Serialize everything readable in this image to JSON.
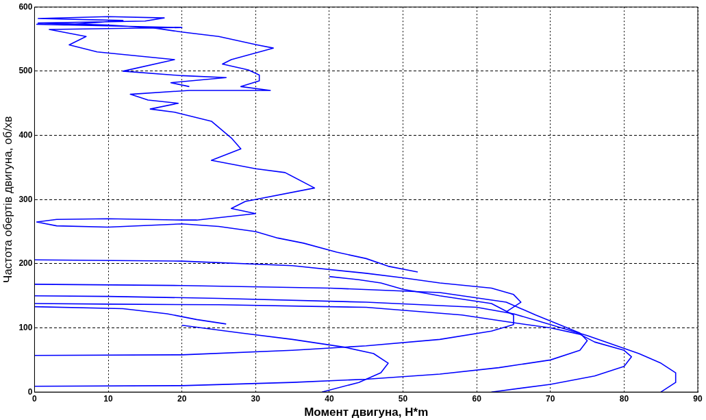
{
  "chart_data": {
    "type": "line",
    "xlabel": "Момент двигуна, Н*m",
    "ylabel": "Частота обертів двигуна, об/хв",
    "xlim": [
      0,
      90
    ],
    "ylim": [
      0,
      600
    ],
    "xticks": [
      0,
      10,
      20,
      30,
      40,
      50,
      60,
      70,
      80,
      90
    ],
    "yticks": [
      0,
      100,
      200,
      300,
      400,
      500,
      600
    ],
    "grid": true,
    "legend": false,
    "marker": "none",
    "line_style": "solid",
    "series": [
      {
        "color": "#0000ff",
        "x": [
          85,
          87,
          87,
          85,
          82,
          79,
          75,
          70,
          65,
          60,
          45,
          25,
          10,
          0
        ],
        "values": [
          0,
          15,
          30,
          45,
          60,
          72,
          88,
          105,
          122,
          132,
          140,
          146,
          149,
          150
        ]
      },
      {
        "color": "#0000ff",
        "x": [
          62,
          70,
          76,
          80,
          81,
          80,
          76,
          74,
          70,
          65,
          58,
          45,
          25,
          10,
          0
        ],
        "values": [
          0,
          12,
          25,
          40,
          55,
          65,
          78,
          90,
          100,
          108,
          120,
          132,
          136,
          137,
          138
        ]
      },
      {
        "color": "#0000ff",
        "x": [
          0,
          20,
          35,
          45,
          55,
          63,
          70,
          74,
          75,
          74,
          68,
          64,
          55,
          40,
          20,
          0
        ],
        "values": [
          9,
          10,
          15,
          20,
          28,
          38,
          50,
          65,
          80,
          92,
          120,
          140,
          155,
          162,
          166,
          168
        ]
      },
      {
        "color": "#0000ff",
        "x": [
          0,
          20,
          35,
          45,
          55,
          62,
          65,
          65,
          62,
          55,
          50,
          47,
          44,
          40
        ],
        "values": [
          57,
          58,
          65,
          72,
          82,
          95,
          105,
          120,
          138,
          150,
          160,
          170,
          175,
          180
        ]
      },
      {
        "color": "#0000ff",
        "x": [
          39,
          44,
          47,
          48,
          46,
          42,
          35,
          28,
          20
        ],
        "values": [
          0,
          15,
          30,
          45,
          60,
          70,
          82,
          92,
          104
        ]
      },
      {
        "color": "#0000ff",
        "x": [
          26,
          22,
          18,
          12,
          0
        ],
        "values": [
          106,
          113,
          122,
          130,
          133
        ]
      },
      {
        "color": "#0000ff",
        "x": [
          0,
          20,
          35,
          45,
          50,
          55,
          62,
          65,
          66,
          64
        ],
        "values": [
          206,
          204,
          197,
          185,
          178,
          170,
          162,
          152,
          140,
          125
        ]
      },
      {
        "color": "#0000ff",
        "x": [
          52,
          48,
          45,
          41,
          36.5,
          33,
          30,
          25,
          20,
          10,
          3,
          0.3,
          3,
          10,
          20,
          22,
          30,
          26.7,
          28.6,
          38,
          34,
          30,
          24,
          28,
          26.7,
          24,
          19,
          15.7,
          19.5,
          15.4,
          13,
          21,
          32,
          28,
          30.5,
          30.5,
          29,
          25.5,
          26.7,
          32.4,
          30.2,
          25,
          20,
          16.4,
          10,
          0.5,
          15,
          17.6,
          10,
          0.5,
          12,
          4,
          0.3,
          12,
          20,
          2,
          7,
          4.7,
          8.5,
          19,
          12,
          20,
          26,
          18.5,
          21
        ],
        "values": [
          187,
          196,
          208,
          218,
          232,
          240,
          250,
          258,
          262,
          257,
          259,
          265,
          269,
          270,
          268,
          268,
          278,
          286,
          297,
          318,
          342,
          348,
          361,
          379,
          396,
          422,
          436,
          441,
          450,
          455,
          464,
          470,
          470,
          476,
          485,
          494,
          502,
          511,
          518,
          536,
          541,
          554,
          561,
          567,
          572,
          575,
          578,
          583,
          585,
          582,
          579,
          572,
          573,
          570,
          568,
          565,
          554,
          541,
          530,
          518,
          500,
          493,
          490,
          482,
          476
        ]
      }
    ]
  }
}
